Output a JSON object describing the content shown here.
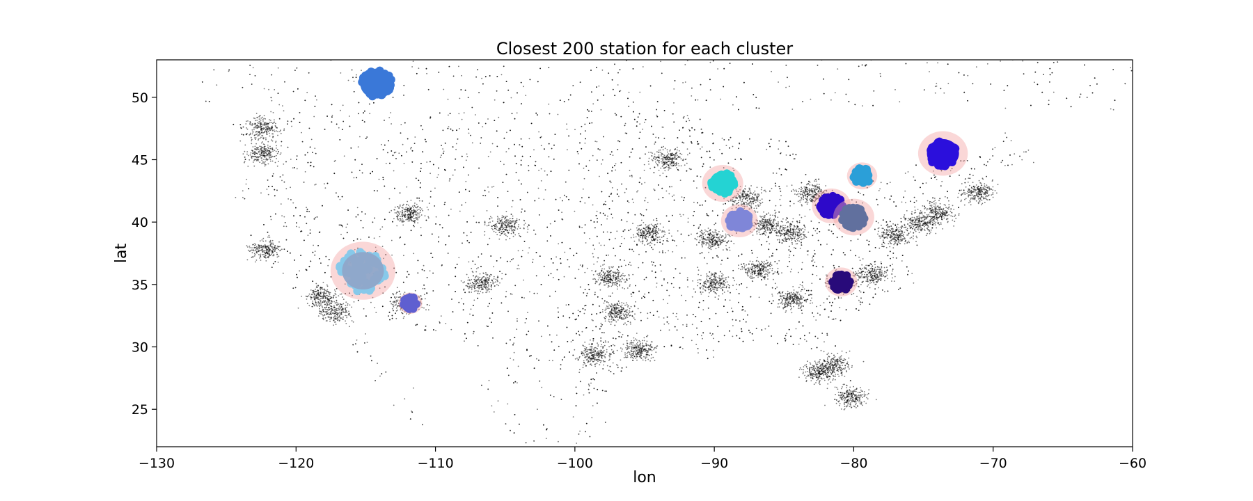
{
  "chart_data": {
    "type": "scatter",
    "title": "Closest 200 station for each cluster",
    "xlabel": "lon",
    "ylabel": "lat",
    "xlim": [
      -130,
      -60
    ],
    "ylim": [
      22,
      53
    ],
    "xticks": [
      -130,
      -120,
      -110,
      -100,
      -90,
      -80,
      -70,
      -60
    ],
    "yticks": [
      25,
      30,
      35,
      40,
      45,
      50
    ],
    "grid": false,
    "background_points": {
      "color": "#000000",
      "description_note": "",
      "dense_areas": [
        {
          "lon": -122.4,
          "lat": 47.5
        },
        {
          "lon": -122.5,
          "lat": 45.5
        },
        {
          "lon": -122.2,
          "lat": 37.8
        },
        {
          "lon": -118.2,
          "lat": 34.0
        },
        {
          "lon": -117.2,
          "lat": 32.8
        },
        {
          "lon": -112.0,
          "lat": 33.5
        },
        {
          "lon": -111.9,
          "lat": 40.7
        },
        {
          "lon": -105.0,
          "lat": 39.7
        },
        {
          "lon": -106.6,
          "lat": 35.1
        },
        {
          "lon": -97.0,
          "lat": 32.8
        },
        {
          "lon": -95.4,
          "lat": 29.8
        },
        {
          "lon": -98.5,
          "lat": 29.4
        },
        {
          "lon": -97.5,
          "lat": 35.5
        },
        {
          "lon": -93.3,
          "lat": 45.0
        },
        {
          "lon": -94.6,
          "lat": 39.1
        },
        {
          "lon": -90.2,
          "lat": 38.6
        },
        {
          "lon": -87.7,
          "lat": 41.9
        },
        {
          "lon": -86.2,
          "lat": 39.8
        },
        {
          "lon": -84.4,
          "lat": 33.8
        },
        {
          "lon": -81.4,
          "lat": 28.5
        },
        {
          "lon": -80.2,
          "lat": 26.0
        },
        {
          "lon": -82.5,
          "lat": 27.9
        },
        {
          "lon": -77.0,
          "lat": 38.9
        },
        {
          "lon": -75.2,
          "lat": 40.0
        },
        {
          "lon": -74.0,
          "lat": 40.7
        },
        {
          "lon": -71.1,
          "lat": 42.4
        },
        {
          "lon": -83.0,
          "lat": 42.3
        },
        {
          "lon": -84.5,
          "lat": 39.1
        },
        {
          "lon": -80.8,
          "lat": 35.2
        },
        {
          "lon": -78.6,
          "lat": 35.8
        },
        {
          "lon": -86.8,
          "lat": 36.2
        },
        {
          "lon": -90.0,
          "lat": 35.1
        }
      ]
    },
    "clusters": [
      {
        "lon": -114.2,
        "lat": 51.1,
        "color": "#3a78d8",
        "halo": false,
        "radius_deg": 1.2
      },
      {
        "lon": -115.2,
        "lat": 36.1,
        "color": "#87c9ea",
        "halo": true,
        "radius_deg": 1.5,
        "spread_deg": 1.7
      },
      {
        "lon": -111.8,
        "lat": 33.5,
        "color": "#5f5fd0",
        "halo": true,
        "radius_deg": 0.55
      },
      {
        "lon": -89.4,
        "lat": 43.1,
        "color": "#24d3d3",
        "halo": true,
        "radius_deg": 0.95
      },
      {
        "lon": -88.2,
        "lat": 40.1,
        "color": "#7f86d8",
        "halo": true,
        "radius_deg": 0.85
      },
      {
        "lon": -81.6,
        "lat": 41.3,
        "color": "#2d09c9",
        "halo": true,
        "radius_deg": 0.9
      },
      {
        "lon": -80.0,
        "lat": 40.4,
        "color": "#61709e",
        "halo": true,
        "radius_deg": 0.95
      },
      {
        "lon": -79.4,
        "lat": 43.7,
        "color": "#2b9fd8",
        "halo": true,
        "radius_deg": 0.7
      },
      {
        "lon": -73.6,
        "lat": 45.5,
        "color": "#2b0fdc",
        "halo": true,
        "radius_deg": 1.15
      },
      {
        "lon": -80.9,
        "lat": 35.2,
        "color": "#280a7a",
        "halo": true,
        "radius_deg": 0.75
      }
    ]
  }
}
